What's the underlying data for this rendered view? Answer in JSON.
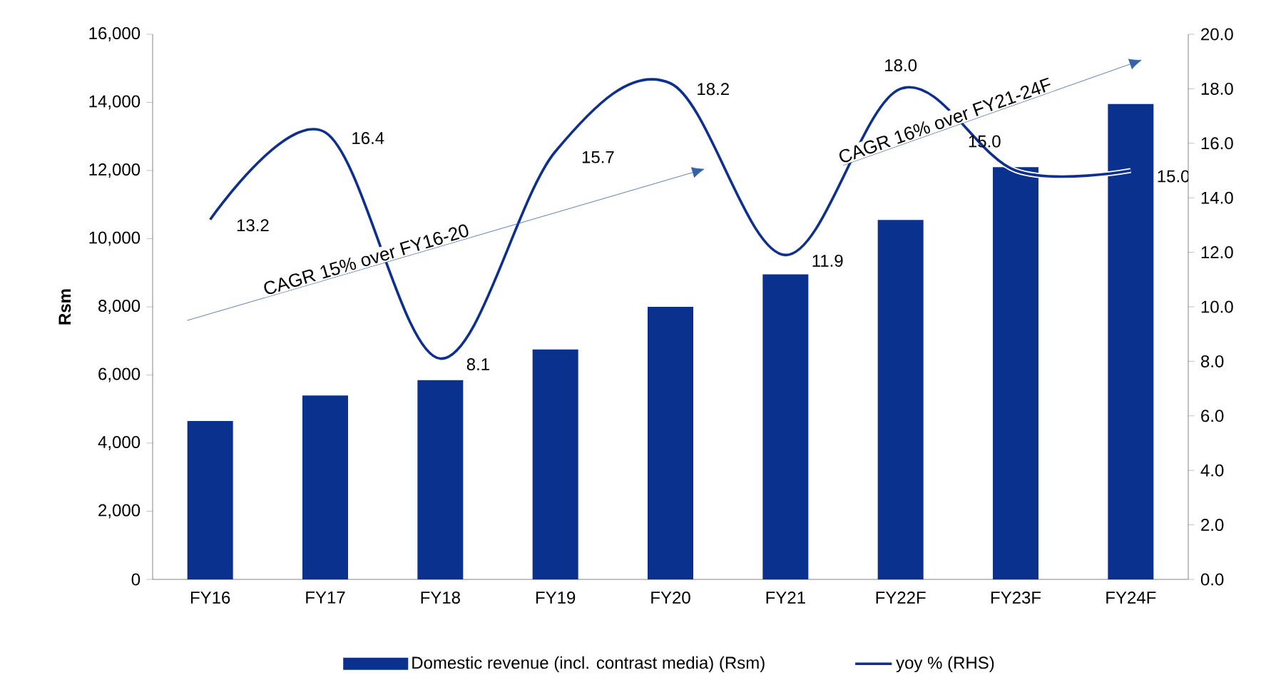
{
  "chart_data": {
    "type": "bar",
    "ylabel": "Rsm",
    "categories": [
      "FY16",
      "FY17",
      "FY18",
      "FY19",
      "FY20",
      "FY21",
      "FY22F",
      "FY23F",
      "FY24F"
    ],
    "series": [
      {
        "name": "Domestic revenue (incl. contrast media) (Rsm)",
        "color": "#0b318f",
        "values": [
          4650,
          5400,
          5850,
          6750,
          8000,
          8950,
          10550,
          12100,
          13950
        ]
      },
      {
        "name": "yoy % (RHS)",
        "type": "line",
        "axis": "y2",
        "color": "#0d2f8f",
        "values": [
          13.2,
          16.4,
          8.1,
          15.7,
          18.2,
          11.9,
          18.0,
          15.0,
          15.0
        ],
        "value_labels": [
          "13.2",
          "16.4",
          "8.1",
          "15.7",
          "18.2",
          "11.9",
          "18.0",
          "15.0",
          "15.0"
        ]
      }
    ],
    "ylim": [
      0,
      16000
    ],
    "yticks": [
      {
        "value": 0,
        "label": "0"
      },
      {
        "value": 2000,
        "label": "2,000"
      },
      {
        "value": 4000,
        "label": "4,000"
      },
      {
        "value": 6000,
        "label": "6,000"
      },
      {
        "value": 8000,
        "label": "8,000"
      },
      {
        "value": 10000,
        "label": "10,000"
      },
      {
        "value": 12000,
        "label": "12,000"
      },
      {
        "value": 14000,
        "label": "14,000"
      },
      {
        "value": 16000,
        "label": "16,000"
      }
    ],
    "y2lim": [
      0,
      20
    ],
    "y2ticks": [
      {
        "value": 0,
        "label": "0.0"
      },
      {
        "value": 2,
        "label": "2.0"
      },
      {
        "value": 4,
        "label": "4.0"
      },
      {
        "value": 6,
        "label": "6.0"
      },
      {
        "value": 8,
        "label": "8.0"
      },
      {
        "value": 10,
        "label": "10.0"
      },
      {
        "value": 12,
        "label": "12.0"
      },
      {
        "value": 14,
        "label": "14.0"
      },
      {
        "value": 16,
        "label": "16.0"
      },
      {
        "value": 18,
        "label": "18.0"
      },
      {
        "value": 20,
        "label": "20.0"
      }
    ],
    "annotations": [
      "CAGR 15% over FY16-20",
      "CAGR 16% over FY21-24F"
    ],
    "legend": "bottom",
    "grid": false
  }
}
